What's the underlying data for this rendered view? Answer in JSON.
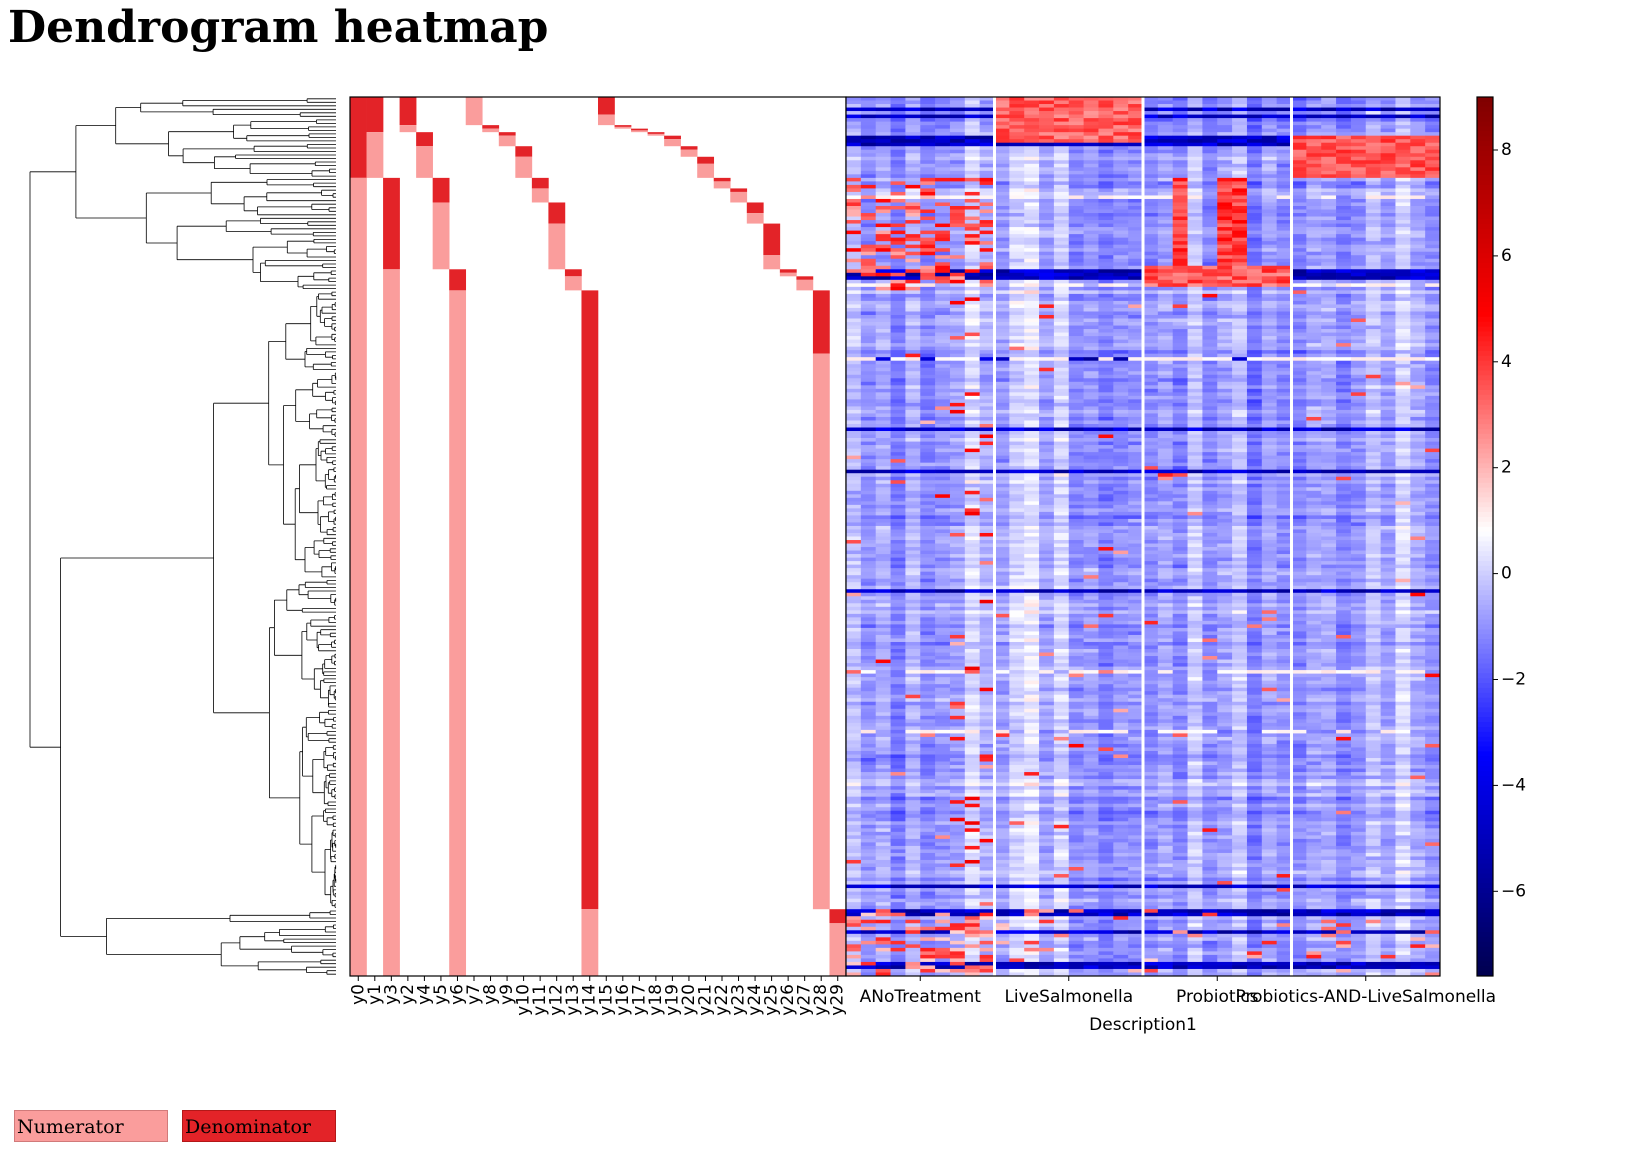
{
  "title": "Dendrogram heatmap",
  "legend": {
    "numerator": {
      "label": "Numerator",
      "color": "#fa9d9c"
    },
    "denominator": {
      "label": "Denominator",
      "color": "#e32328"
    }
  },
  "chart_data": [
    {
      "type": "dendrogram",
      "orientation": "left",
      "line_color": "#000000",
      "leaf_count": 250,
      "note_visible": "dense hierarchical tree; leaves aligned with heatmap rows"
    },
    {
      "type": "heatmap",
      "name": "balance-design",
      "row_count": 250,
      "columns": [
        "y0",
        "y1",
        "y2",
        "y3",
        "y4",
        "y5",
        "y6",
        "y7",
        "y8",
        "y9",
        "y10",
        "y11",
        "y12",
        "y13",
        "y14",
        "y15",
        "y16",
        "y17",
        "y18",
        "y19",
        "y20",
        "y21",
        "y22",
        "y23",
        "y24",
        "y25",
        "y26",
        "y27",
        "y28",
        "y29"
      ],
      "tick_labels": [
        "y0",
        "y1",
        "y3",
        "y2",
        "y4",
        "y5",
        "y6",
        "y7",
        "y8",
        "y9",
        "y10",
        "y11",
        "y12",
        "y13",
        "y14",
        "y15",
        "y16",
        "y17",
        "y18",
        "y19",
        "y20",
        "y21",
        "y22",
        "y23",
        "y24",
        "y25",
        "y26",
        "y27",
        "y28",
        "y29"
      ],
      "value_colors": {
        "numerator": "#fa9d9c",
        "denominator": "#e32328",
        "none": "#ffffff"
      },
      "spans": [
        {
          "col": 0,
          "denominator": [
            0,
            23
          ],
          "numerator": [
            23,
            250
          ]
        },
        {
          "col": 1,
          "denominator": [
            0,
            10
          ],
          "numerator": [
            10,
            23
          ]
        },
        {
          "col": 2,
          "denominator": [
            23,
            49
          ],
          "numerator": [
            49,
            250
          ]
        },
        {
          "col": 3,
          "denominator": [
            0,
            8
          ],
          "numerator": [
            8,
            10
          ]
        },
        {
          "col": 4,
          "denominator": [
            10,
            14
          ],
          "numerator": [
            14,
            23
          ]
        },
        {
          "col": 5,
          "denominator": [
            23,
            30
          ],
          "numerator": [
            30,
            49
          ]
        },
        {
          "col": 6,
          "denominator": [
            49,
            55
          ],
          "numerator": [
            55,
            250
          ]
        },
        {
          "col": 7,
          "denominator": [
            0,
            0
          ],
          "numerator": [
            0,
            8
          ]
        },
        {
          "col": 8,
          "denominator": [
            8,
            9
          ],
          "numerator": [
            9,
            10
          ]
        },
        {
          "col": 9,
          "denominator": [
            10,
            11
          ],
          "numerator": [
            11,
            14
          ]
        },
        {
          "col": 10,
          "denominator": [
            14,
            17
          ],
          "numerator": [
            17,
            23
          ]
        },
        {
          "col": 11,
          "denominator": [
            23,
            26
          ],
          "numerator": [
            26,
            30
          ]
        },
        {
          "col": 12,
          "denominator": [
            30,
            36
          ],
          "numerator": [
            36,
            49
          ]
        },
        {
          "col": 13,
          "denominator": [
            49,
            51
          ],
          "numerator": [
            51,
            55
          ]
        },
        {
          "col": 14,
          "denominator": [
            55,
            231
          ],
          "numerator": [
            231,
            250
          ]
        },
        {
          "col": 15,
          "denominator": [
            0,
            5
          ],
          "numerator": [
            5,
            8
          ]
        },
        {
          "col": 16,
          "denominator": [
            8,
            8.5
          ],
          "numerator": [
            8.5,
            9
          ]
        },
        {
          "col": 17,
          "denominator": [
            9,
            9.5
          ],
          "numerator": [
            9.5,
            10
          ]
        },
        {
          "col": 18,
          "denominator": [
            10,
            10.5
          ],
          "numerator": [
            10.5,
            11
          ]
        },
        {
          "col": 19,
          "denominator": [
            11,
            12
          ],
          "numerator": [
            12,
            14
          ]
        },
        {
          "col": 20,
          "denominator": [
            14,
            15
          ],
          "numerator": [
            15,
            17
          ]
        },
        {
          "col": 21,
          "denominator": [
            17,
            19
          ],
          "numerator": [
            19,
            23
          ]
        },
        {
          "col": 22,
          "denominator": [
            23,
            24
          ],
          "numerator": [
            24,
            26
          ]
        },
        {
          "col": 23,
          "denominator": [
            26,
            27
          ],
          "numerator": [
            27,
            30
          ]
        },
        {
          "col": 24,
          "denominator": [
            30,
            33
          ],
          "numerator": [
            33,
            36
          ]
        },
        {
          "col": 25,
          "denominator": [
            36,
            45
          ],
          "numerator": [
            45,
            49
          ]
        },
        {
          "col": 26,
          "denominator": [
            49,
            50
          ],
          "numerator": [
            50,
            51
          ]
        },
        {
          "col": 27,
          "denominator": [
            51,
            52
          ],
          "numerator": [
            52,
            55
          ]
        },
        {
          "col": 28,
          "denominator": [
            55,
            73
          ],
          "numerator": [
            73,
            231
          ]
        },
        {
          "col": 29,
          "denominator": [
            231,
            235
          ],
          "numerator": [
            235,
            250
          ]
        }
      ]
    },
    {
      "type": "heatmap",
      "name": "abundance",
      "row_count": 250,
      "xlabel": "Description1",
      "groups": [
        {
          "label": "ANoTreatment",
          "columns": 10
        },
        {
          "label": "LiveSalmonella",
          "columns": 10
        },
        {
          "label": "Probiotics",
          "columns": 10
        },
        {
          "label": "Probiotics-AND-LiveSalmonella",
          "columns": 10
        }
      ],
      "colormap": "seismic",
      "colormap_stops": [
        "#00004c",
        "#0000ff",
        "#ffffff",
        "#ff0000",
        "#800000"
      ],
      "vmin": -7.6,
      "vmax": 9.0,
      "center": 0.85
    },
    {
      "type": "colorbar",
      "ticks": [
        8,
        6,
        4,
        2,
        0,
        -2,
        -4,
        -6
      ],
      "tick_labels": [
        "8",
        "6",
        "4",
        "2",
        "0",
        "−2",
        "−4",
        "−6"
      ],
      "range": [
        -7.6,
        9.0
      ]
    }
  ]
}
